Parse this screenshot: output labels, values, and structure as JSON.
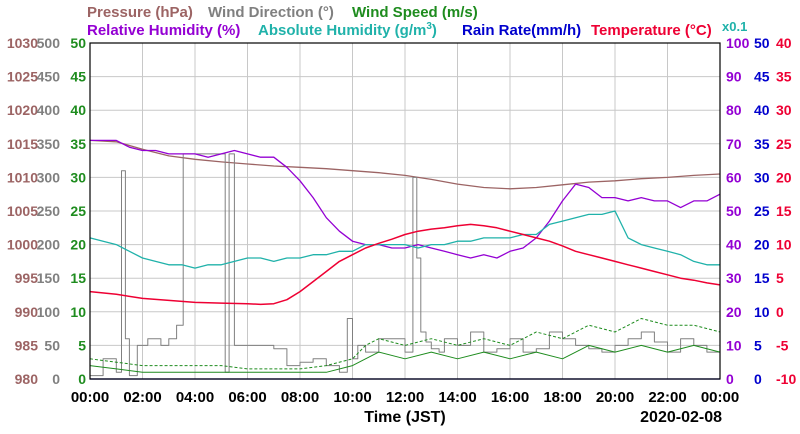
{
  "legend": {
    "pressure": "Pressure (hPa)",
    "wind_direction": "Wind Direction (°)",
    "wind_speed": "Wind Speed (m/s)",
    "relative_humidity": "Relative Humidity (%)",
    "absolute_humidity_prefix": "Absolute Humidity (g/m",
    "absolute_humidity_sup": "3",
    "absolute_humidity_suffix": ")",
    "rain_rate": "Rain Rate(mm/h)",
    "temperature": "Temperature (°C)",
    "scale_note": "x0.1"
  },
  "x_axis": {
    "label": "Time (JST)",
    "date": "2020-02-08"
  },
  "colors": {
    "pressure": "#9c6464",
    "wind_direction": "#808080",
    "wind_speed": "#1e8c1e",
    "relative_humidity": "#9400d3",
    "absolute_humidity": "#20b2aa",
    "rain_rate": "#0000cd",
    "temperature": "#ee0033",
    "grid": "#c8c8c8"
  },
  "chart_data": {
    "type": "line",
    "x_unit": "hour",
    "x_range": [
      0,
      24
    ],
    "x_ticks": [
      "00:00",
      "02:00",
      "04:00",
      "06:00",
      "08:00",
      "10:00",
      "12:00",
      "14:00",
      "16:00",
      "18:00",
      "20:00",
      "22:00",
      "00:00"
    ],
    "axes": {
      "pressure": {
        "range": [
          980,
          1030
        ],
        "ticks": [
          "980",
          "985",
          "990",
          "995",
          "1000",
          "1005",
          "1010",
          "1015",
          "1020",
          "1025",
          "1030"
        ]
      },
      "wind_direction": {
        "range": [
          0,
          500
        ],
        "ticks": [
          "0",
          "50",
          "100",
          "150",
          "200",
          "250",
          "300",
          "350",
          "400",
          "450",
          "500"
        ]
      },
      "wind_speed": {
        "range": [
          0,
          50
        ],
        "ticks": [
          "0",
          "5",
          "10",
          "15",
          "20",
          "25",
          "30",
          "35",
          "40",
          "45",
          "50"
        ]
      },
      "relative_humidity": {
        "range": [
          0,
          100
        ],
        "ticks": [
          "0",
          "10",
          "20",
          "30",
          "40",
          "50",
          "60",
          "70",
          "80",
          "90",
          "100"
        ]
      },
      "rain_rate": {
        "range": [
          0,
          50
        ],
        "ticks": [
          "0",
          "5",
          "10",
          "15",
          "20",
          "25",
          "30",
          "35",
          "40",
          "45",
          "50"
        ]
      },
      "temperature": {
        "range": [
          -10,
          40
        ],
        "ticks": [
          "-10",
          "-5",
          "0",
          "5",
          "10",
          "15",
          "20",
          "25",
          "30",
          "35",
          "40"
        ]
      }
    },
    "series": [
      {
        "name": "Pressure (hPa)",
        "axis": "pressure",
        "x": [
          0,
          1,
          2,
          3,
          4,
          5,
          6,
          7,
          8,
          9,
          10,
          11,
          12,
          13,
          14,
          15,
          16,
          17,
          18,
          19,
          20,
          21,
          22,
          23,
          24
        ],
        "y": [
          1015.5,
          1015.3,
          1014.2,
          1013.2,
          1012.7,
          1012.3,
          1012.0,
          1011.7,
          1011.5,
          1011.3,
          1011.0,
          1010.7,
          1010.3,
          1009.7,
          1009.0,
          1008.5,
          1008.3,
          1008.5,
          1008.9,
          1009.3,
          1009.5,
          1009.8,
          1010.0,
          1010.3,
          1010.5
        ]
      },
      {
        "name": "Wind Direction (°)",
        "axis": "wind_direction",
        "x": [
          0,
          0.5,
          1.0,
          1.2,
          1.35,
          1.5,
          1.8,
          2.2,
          2.7,
          3.0,
          3.3,
          3.55,
          4.0,
          4.5,
          5.0,
          5.15,
          5.3,
          5.5,
          6.0,
          6.5,
          7.0,
          7.5,
          8.0,
          8.5,
          9.0,
          9.5,
          9.8,
          10.0,
          10.2,
          10.5,
          11.0,
          11.5,
          12.0,
          12.3,
          12.45,
          12.6,
          12.8,
          13.0,
          13.3,
          13.5,
          14.0,
          14.5,
          15.0,
          15.5,
          16.0,
          16.5,
          17.0,
          17.5,
          18.0,
          18.5,
          19.0,
          19.5,
          20.0,
          20.5,
          21.0,
          21.5,
          22.0,
          22.5,
          23.0,
          23.5,
          24.0
        ],
        "y": [
          5,
          30,
          10,
          310,
          60,
          5,
          50,
          60,
          50,
          60,
          80,
          335,
          335,
          335,
          335,
          10,
          335,
          50,
          50,
          50,
          45,
          20,
          25,
          30,
          20,
          10,
          90,
          30,
          50,
          40,
          60,
          60,
          40,
          300,
          180,
          70,
          55,
          45,
          40,
          60,
          50,
          70,
          40,
          45,
          60,
          40,
          45,
          70,
          60,
          50,
          45,
          40,
          50,
          60,
          70,
          55,
          40,
          60,
          50,
          40,
          55
        ]
      },
      {
        "name": "Wind Speed (m/s) solid",
        "axis": "wind_speed",
        "x": [
          0,
          1,
          2,
          3,
          4,
          5,
          6,
          7,
          8,
          9,
          10,
          10.5,
          11,
          12,
          13,
          14,
          15,
          16,
          17,
          18,
          19,
          20,
          21,
          22,
          23,
          24
        ],
        "y": [
          2,
          1.5,
          1,
          1,
          1,
          1,
          1,
          1,
          1,
          1,
          2,
          3,
          4,
          3,
          4,
          3,
          4,
          3,
          4,
          3,
          5,
          4,
          5,
          4,
          5,
          4
        ]
      },
      {
        "name": "Wind Speed (m/s) dashed",
        "axis": "wind_speed",
        "x": [
          0,
          1,
          2,
          3,
          4,
          5,
          6,
          7,
          8,
          9,
          10,
          10.5,
          11,
          12,
          13,
          14,
          15,
          16,
          17,
          18,
          19,
          20,
          21,
          22,
          23,
          24
        ],
        "y": [
          3,
          2.5,
          2,
          2,
          2,
          2,
          1.5,
          1.5,
          1.5,
          2,
          3,
          5,
          6,
          5,
          6,
          5,
          6,
          5,
          7,
          6,
          8,
          7,
          9,
          8,
          8,
          7
        ]
      },
      {
        "name": "Relative Humidity (%)",
        "axis": "relative_humidity",
        "x": [
          0,
          1.0,
          1.5,
          2.0,
          2.5,
          3.0,
          3.5,
          4.0,
          4.5,
          5.0,
          5.5,
          6.0,
          6.5,
          7.0,
          7.5,
          8.0,
          8.5,
          9.0,
          9.5,
          10.0,
          10.5,
          11.0,
          11.5,
          12.0,
          12.5,
          13.0,
          13.5,
          14.0,
          14.5,
          15.0,
          15.5,
          16.0,
          16.5,
          17.0,
          17.5,
          18.0,
          18.5,
          19.0,
          19.5,
          20.0,
          20.5,
          21.0,
          21.5,
          22.0,
          22.5,
          23.0,
          23.5,
          24.0
        ],
        "y": [
          71,
          71,
          69,
          68,
          68,
          67,
          67,
          67,
          66,
          67,
          68,
          67,
          66,
          66,
          63,
          59,
          54,
          48,
          44,
          41,
          40,
          40,
          39,
          39,
          40,
          39,
          38,
          37,
          36,
          37,
          36,
          38,
          39,
          42,
          47,
          53,
          58,
          57,
          54,
          54,
          53,
          54,
          53,
          53,
          51,
          53,
          53,
          55
        ]
      },
      {
        "name": "Absolute Humidity (g/m3)",
        "axis": "relative_humidity",
        "x": [
          0,
          0.5,
          1.0,
          1.5,
          2.0,
          2.5,
          3.0,
          3.5,
          4.0,
          4.5,
          5.0,
          5.5,
          6.0,
          6.5,
          7.0,
          7.5,
          8.0,
          8.5,
          9.0,
          9.5,
          10.0,
          10.5,
          11.0,
          11.5,
          12.0,
          12.5,
          13.0,
          13.5,
          14.0,
          14.5,
          15.0,
          15.5,
          16.0,
          16.5,
          17.0,
          17.5,
          18.0,
          18.5,
          19.0,
          19.5,
          20.0,
          20.5,
          21.0,
          21.5,
          22.0,
          22.5,
          23.0,
          23.5,
          24.0
        ],
        "y": [
          42,
          41,
          40,
          38,
          36,
          35,
          34,
          34,
          33,
          34,
          34,
          35,
          36,
          36,
          35,
          36,
          36,
          37,
          37,
          38,
          38,
          40,
          40,
          40,
          40,
          39,
          40,
          40,
          41,
          41,
          42,
          42,
          42,
          43,
          43,
          46,
          47,
          48,
          49,
          49,
          50,
          42,
          40,
          39,
          38,
          37,
          35,
          34,
          34
        ]
      },
      {
        "name": "Rain Rate(mm/h)",
        "axis": "rain_rate",
        "x": [
          0,
          24
        ],
        "y": [
          0,
          0
        ]
      },
      {
        "name": "Temperature (°C)",
        "axis": "temperature",
        "x": [
          0,
          1,
          2,
          3,
          4,
          5,
          6,
          6.5,
          7,
          7.5,
          8,
          8.5,
          9,
          9.5,
          10,
          10.5,
          11,
          11.5,
          12,
          12.5,
          13,
          13.5,
          14,
          14.5,
          15,
          15.5,
          16,
          16.5,
          17,
          17.5,
          18,
          18.5,
          19,
          19.5,
          20,
          20.5,
          21,
          21.5,
          22,
          22.5,
          23,
          23.5,
          24
        ],
        "y": [
          3.0,
          2.6,
          2.0,
          1.7,
          1.4,
          1.3,
          1.2,
          1.1,
          1.2,
          1.8,
          3.0,
          4.5,
          6.0,
          7.5,
          8.5,
          9.5,
          10.2,
          10.8,
          11.5,
          12.0,
          12.3,
          12.5,
          12.8,
          13.0,
          12.8,
          12.5,
          12.0,
          11.5,
          11.0,
          10.5,
          9.8,
          9.0,
          8.5,
          8.0,
          7.5,
          7.0,
          6.5,
          6.0,
          5.5,
          5.0,
          4.7,
          4.3,
          4.0
        ]
      }
    ]
  }
}
